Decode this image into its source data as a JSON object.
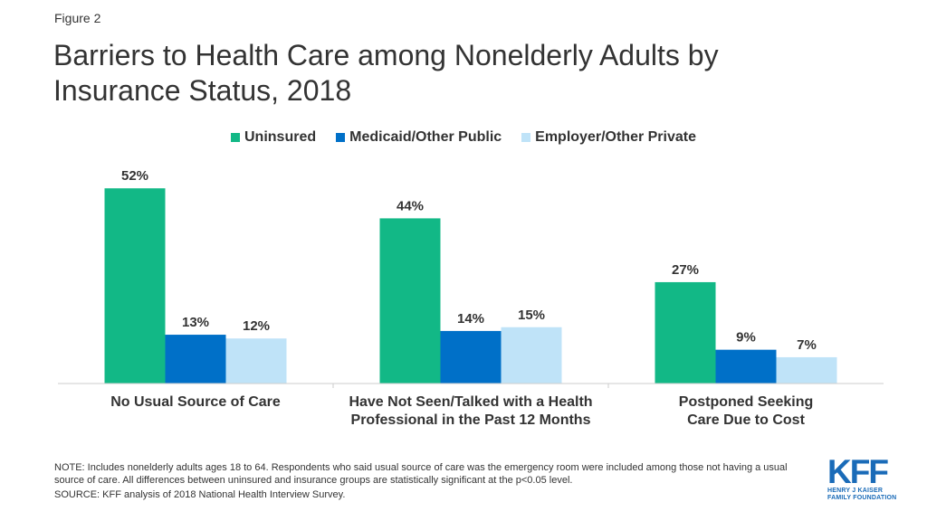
{
  "figure_label": "Figure 2",
  "title": "Barriers to Health Care among Nonelderly Adults by Insurance Status, 2018",
  "colors": {
    "uninsured": "#12b886",
    "medicaid": "#0070c8",
    "employer": "#bfe3f8",
    "axis": "#cccccc",
    "text": "#333333"
  },
  "chart_data": {
    "type": "bar",
    "title": "Barriers to Health Care among Nonelderly Adults by Insurance Status, 2018",
    "categories": [
      [
        "No Usual Source of Care"
      ],
      [
        "Have Not Seen/Talked with a Health",
        "Professional in the Past 12 Months"
      ],
      [
        "Postponed Seeking",
        "Care Due to Cost"
      ]
    ],
    "series": [
      {
        "name": "Uninsured",
        "values": [
          52,
          44,
          27
        ],
        "labels": [
          "52%",
          "44%",
          "27%"
        ]
      },
      {
        "name": "Medicaid/Other Public",
        "values": [
          13,
          14,
          9
        ],
        "labels": [
          "13%",
          "14%",
          "9%"
        ]
      },
      {
        "name": "Employer/Other Private",
        "values": [
          12,
          15,
          7
        ],
        "labels": [
          "12%",
          "15%",
          "7%"
        ]
      }
    ],
    "ylim": [
      0,
      60
    ],
    "grid": false,
    "legend_position": "top-center"
  },
  "notes": {
    "note": "NOTE: Includes nonelderly adults ages 18 to 64. Respondents who said usual source of care was the emergency room were included among those not having a usual source of care. All differences between uninsured and insurance groups are statistically significant at the p<0.05 level.",
    "source": "SOURCE: KFF analysis of 2018 National Health Interview Survey."
  },
  "logo": {
    "mark": "KFF",
    "line1": "HENRY J KAISER",
    "line2": "FAMILY FOUNDATION"
  }
}
